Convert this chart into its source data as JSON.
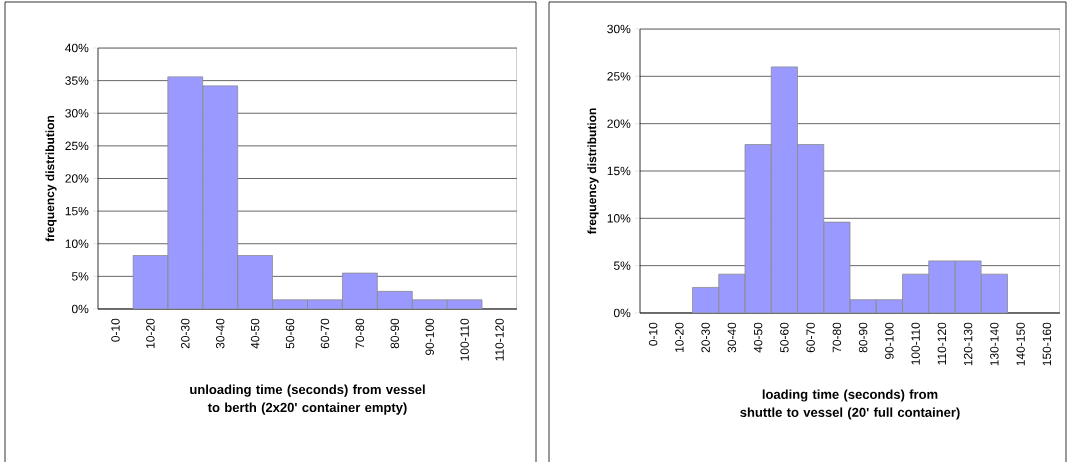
{
  "chart_data": [
    {
      "type": "bar",
      "xlabel": "unloading time (seconds) from vessel to berth (2x20' container empty)",
      "ylabel": "frequency distribution",
      "categories": [
        "0-10",
        "10-20",
        "20-30",
        "30-40",
        "40-50",
        "50-60",
        "60-70",
        "70-80",
        "80-90",
        "90-100",
        "100-110",
        "110-120"
      ],
      "values": [
        0,
        8.2,
        35.6,
        34.2,
        8.2,
        1.4,
        1.4,
        5.5,
        2.7,
        1.4,
        1.4,
        0
      ],
      "color": "#9999ff",
      "grid": "y",
      "ylim": [
        0,
        40
      ],
      "yticks": [
        {
          "value": 0,
          "label": "0%"
        },
        {
          "value": 5,
          "label": "5%"
        },
        {
          "value": 10,
          "label": "10%"
        },
        {
          "value": 15,
          "label": "15%"
        },
        {
          "value": 20,
          "label": "20%"
        },
        {
          "value": 25,
          "label": "25%"
        },
        {
          "value": 30,
          "label": "30%"
        },
        {
          "value": 35,
          "label": "35%"
        },
        {
          "value": 40,
          "label": "40%"
        }
      ]
    },
    {
      "type": "bar",
      "xlabel": "loading time (seconds) from shuttle to vessel (20'  full container)",
      "ylabel": "frequency distribution",
      "categories": [
        "0-10",
        "10-20",
        "20-30",
        "30-40",
        "40-50",
        "50-60",
        "60-70",
        "70-80",
        "80-90",
        "90-100",
        "100-110",
        "110-120",
        "120-130",
        "130-140",
        "140-150",
        "150-160"
      ],
      "values": [
        0,
        0,
        2.7,
        4.1,
        17.8,
        26.0,
        17.8,
        9.6,
        1.4,
        1.4,
        4.1,
        5.5,
        5.5,
        4.1,
        0,
        0
      ],
      "color": "#9999ff",
      "grid": "y",
      "ylim": [
        0,
        30
      ],
      "yticks": [
        {
          "value": 0,
          "label": "0%"
        },
        {
          "value": 5,
          "label": "5%"
        },
        {
          "value": 10,
          "label": "10%"
        },
        {
          "value": 15,
          "label": "15%"
        },
        {
          "value": 20,
          "label": "20%"
        },
        {
          "value": 25,
          "label": "25%"
        },
        {
          "value": 30,
          "label": "30%"
        }
      ]
    }
  ]
}
